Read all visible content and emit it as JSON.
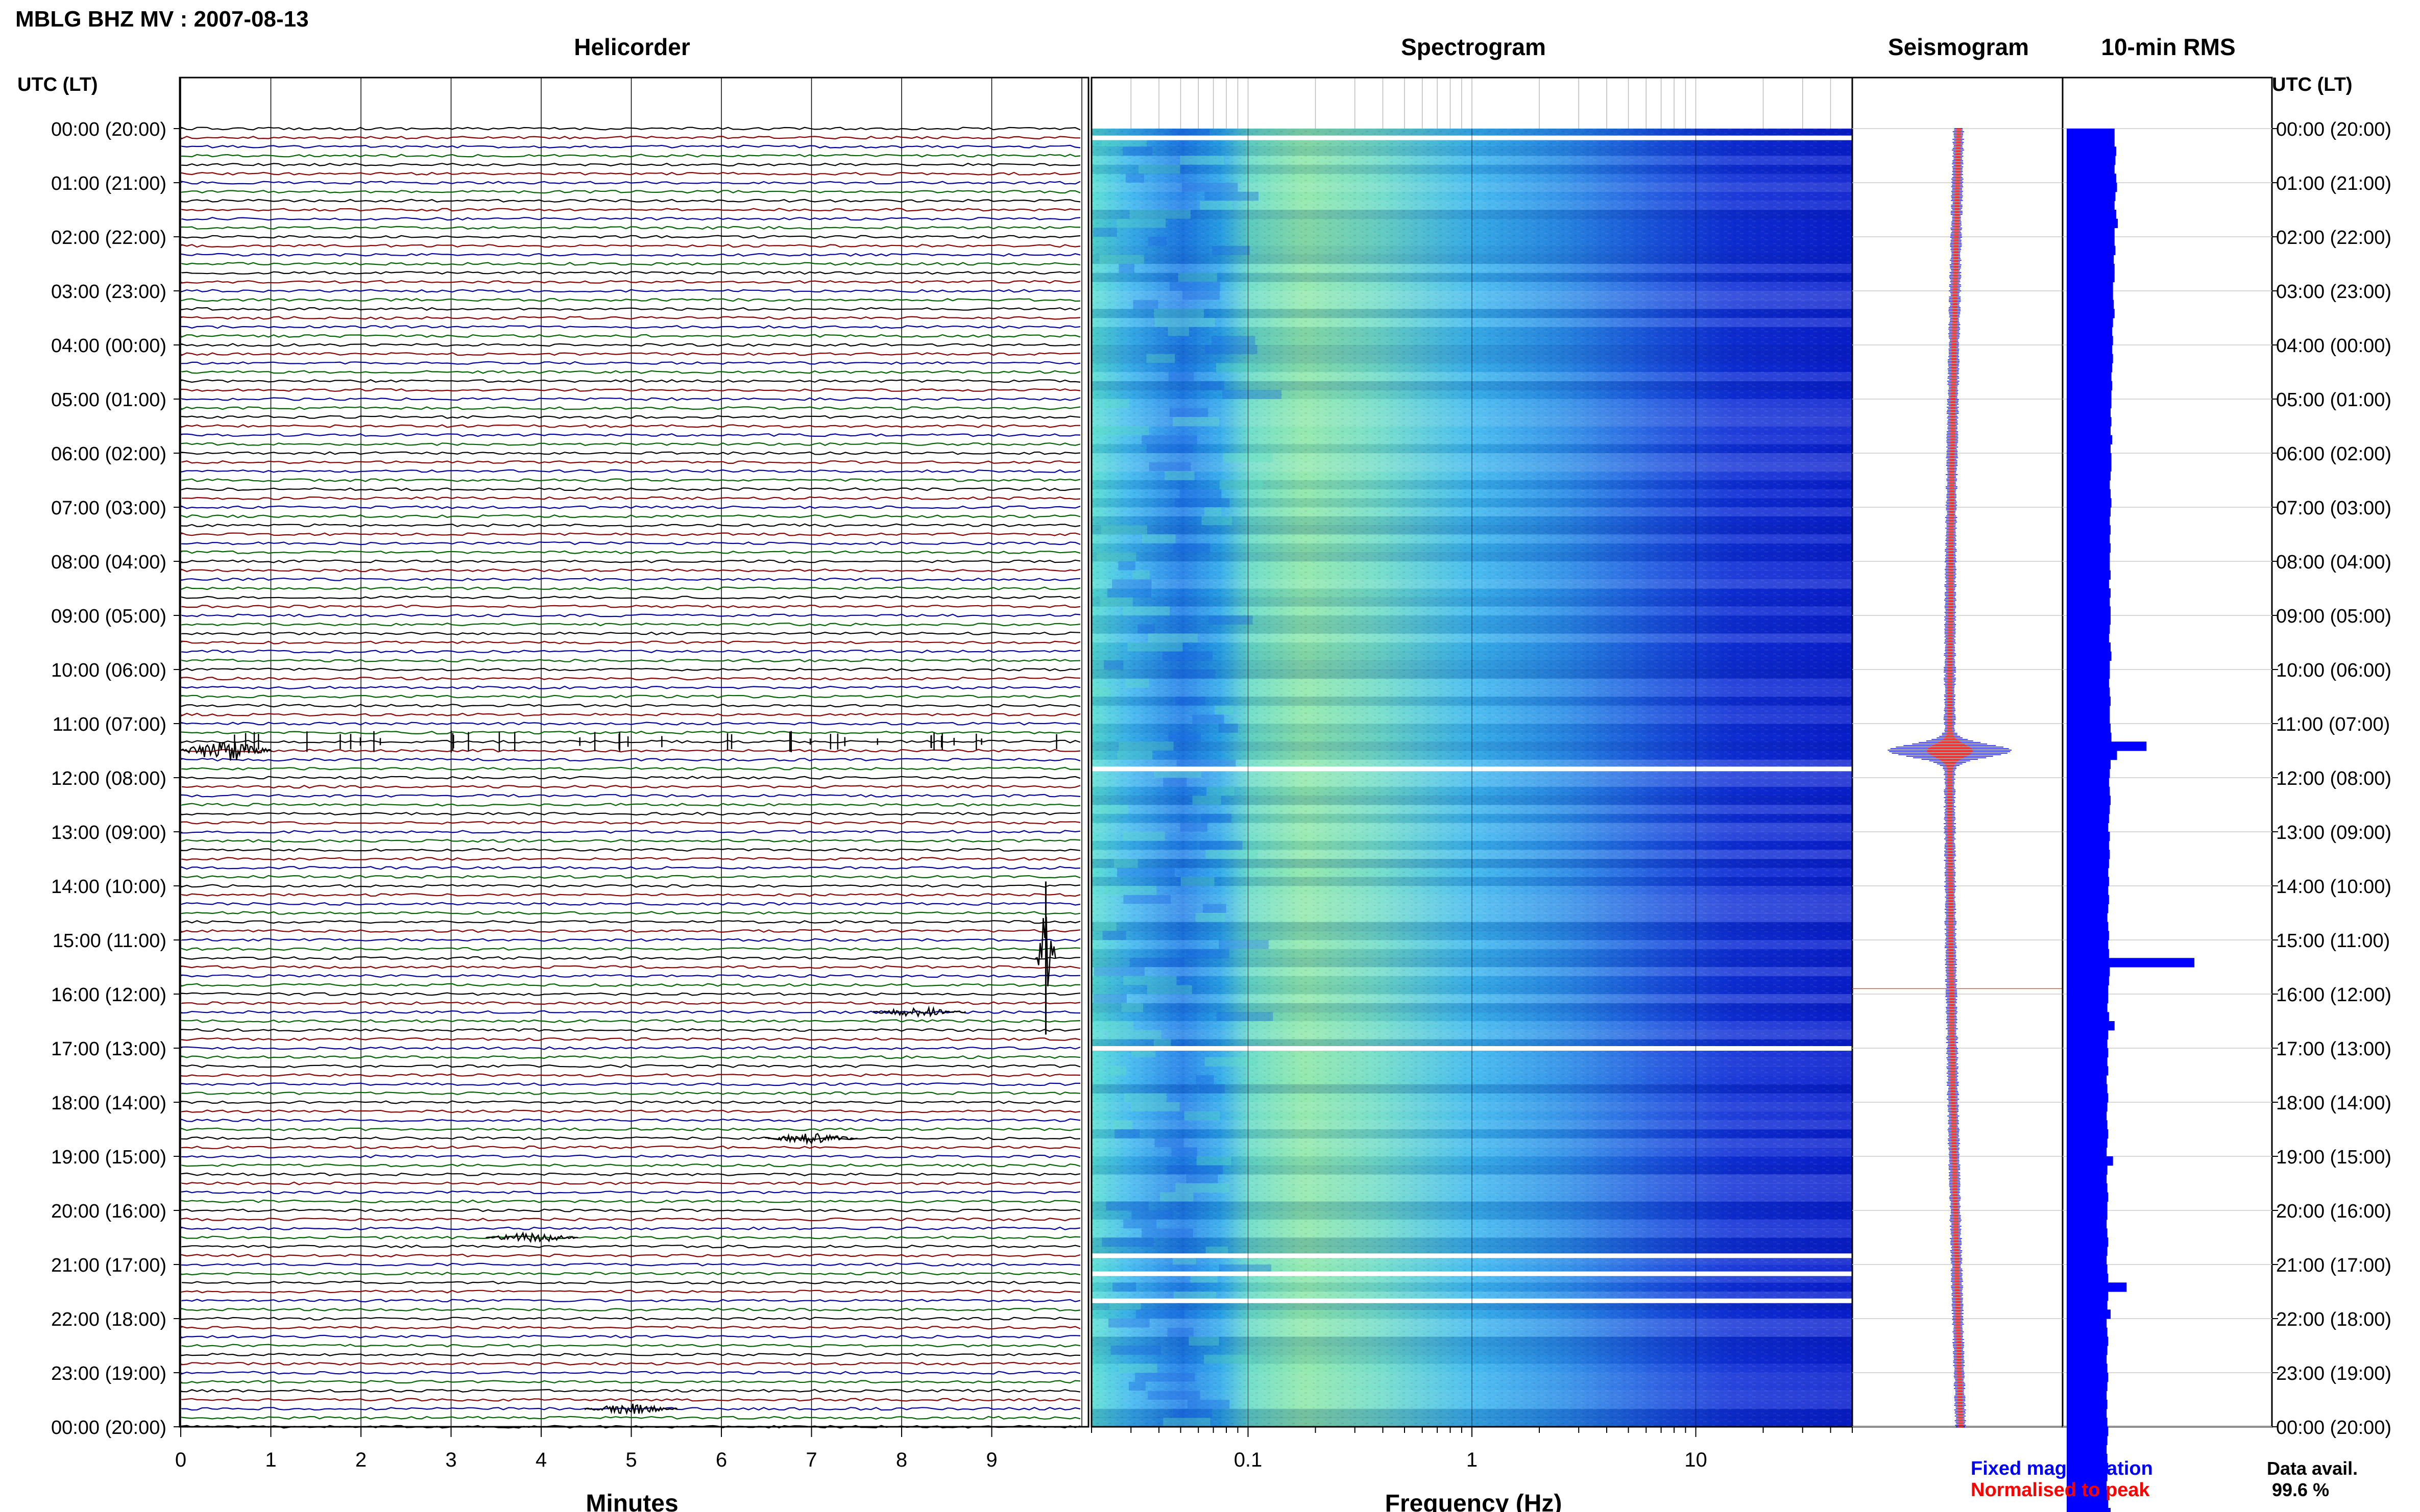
{
  "header": {
    "title": "MBLG BHZ MV : 2007-08-13"
  },
  "panels": {
    "helicorder": "Helicorder",
    "spectrogram": "Spectrogram",
    "seismogram": "Seismogram",
    "rms": "10-min RMS"
  },
  "axes": {
    "time_label_left": "UTC (LT)",
    "time_label_right": "UTC (LT)",
    "minutes_label": "Minutes",
    "frequency_label": "Frequency (Hz)"
  },
  "time_ticks": [
    "00:00 (20:00)",
    "01:00 (21:00)",
    "02:00 (22:00)",
    "03:00 (23:00)",
    "04:00 (00:00)",
    "05:00 (01:00)",
    "06:00 (02:00)",
    "07:00 (03:00)",
    "08:00 (04:00)",
    "09:00 (05:00)",
    "10:00 (06:00)",
    "11:00 (07:00)",
    "12:00 (08:00)",
    "13:00 (09:00)",
    "14:00 (10:00)",
    "15:00 (11:00)",
    "16:00 (12:00)",
    "17:00 (13:00)",
    "18:00 (14:00)",
    "19:00 (15:00)",
    "20:00 (16:00)",
    "21:00 (17:00)",
    "22:00 (18:00)",
    "23:00 (19:00)",
    "00:00 (20:00)"
  ],
  "minute_ticks": [
    "0",
    "1",
    "2",
    "3",
    "4",
    "5",
    "6",
    "7",
    "8",
    "9"
  ],
  "freq_ticks": [
    "0.1",
    "1",
    "10"
  ],
  "legend": {
    "fixed": "Fixed magnification",
    "normalised": "Normalised to peak",
    "data_avail_label": "Data avail.",
    "data_avail_value": "99.6 %"
  },
  "colors": {
    "trace_black": "#000000",
    "trace_red": "#8b0000",
    "trace_blue": "#0000a0",
    "trace_green": "#006400",
    "fixed_mag": "#0000ff",
    "normalised": "#ff0000",
    "rms_bar": "#0000ff"
  },
  "chart_data": {
    "type": "heatmap",
    "helicorder": {
      "rows_per_hour": 6,
      "minutes_per_row": 10,
      "events": [
        {
          "time_utc": "11:30",
          "minute": 0.5,
          "amplitude": "moderate"
        },
        {
          "time_utc": "15:20",
          "minute": 9.6,
          "amplitude": "large"
        },
        {
          "time_utc": "16:20",
          "minute": 8.2,
          "amplitude": "small"
        },
        {
          "time_utc": "18:40",
          "minute": 7.0,
          "amplitude": "small"
        },
        {
          "time_utc": "20:30",
          "minute": 3.9,
          "amplitude": "small"
        },
        {
          "time_utc": "23:40",
          "minute": 5.0,
          "amplitude": "small"
        }
      ]
    },
    "spectrogram": {
      "freq_scale": "log",
      "freq_range_hz": [
        0.02,
        50
      ],
      "gaps_utc": [
        "00:10",
        "11:50",
        "17:00",
        "20:50",
        "21:10",
        "21:40"
      ]
    },
    "rms": {
      "interval_minutes": 10,
      "values": [
        0.6,
        0.6,
        0.62,
        0.61,
        0.6,
        0.62,
        0.63,
        0.61,
        0.6,
        0.62,
        0.64,
        0.6,
        0.6,
        0.61,
        0.59,
        0.6,
        0.6,
        0.58,
        0.58,
        0.59,
        0.6,
        0.58,
        0.57,
        0.58,
        0.57,
        0.58,
        0.57,
        0.56,
        0.57,
        0.56,
        0.56,
        0.55,
        0.56,
        0.55,
        0.57,
        0.55,
        0.56,
        0.56,
        0.55,
        0.54,
        0.55,
        0.56,
        0.55,
        0.54,
        0.55,
        0.54,
        0.55,
        0.54,
        0.54,
        0.55,
        0.53,
        0.55,
        0.54,
        0.55,
        0.55,
        0.54,
        0.53,
        0.55,
        0.56,
        0.54,
        0.54,
        0.53,
        0.54,
        0.55,
        0.54,
        0.54,
        0.55,
        0.56,
        1.0,
        0.63,
        0.55,
        0.54,
        0.53,
        0.54,
        0.55,
        0.54,
        0.53,
        0.52,
        0.54,
        0.53,
        0.54,
        0.53,
        0.52,
        0.53,
        0.52,
        0.53,
        0.52,
        0.51,
        0.52,
        0.53,
        0.52,
        0.53,
        1.6,
        0.54,
        0.53,
        0.52,
        0.52,
        0.51,
        0.53,
        0.6,
        0.52,
        0.51,
        0.52,
        0.51,
        0.52,
        0.5,
        0.51,
        0.52,
        0.51,
        0.5,
        0.51,
        0.52,
        0.51,
        0.5,
        0.58,
        0.51,
        0.5,
        0.51,
        0.52,
        0.51,
        0.51,
        0.5,
        0.51,
        0.52,
        0.51,
        0.5,
        0.51,
        0.52,
        0.75,
        0.52,
        0.51,
        0.55,
        0.5,
        0.51,
        0.52,
        0.51,
        0.5,
        0.51,
        0.52,
        0.51,
        0.5,
        0.51,
        0.5,
        0.51,
        0.52,
        0.51,
        0.5,
        0.51,
        0.52,
        0.51,
        0.5,
        0.51,
        0.52,
        0.55,
        0.51,
        0.5
      ]
    }
  }
}
